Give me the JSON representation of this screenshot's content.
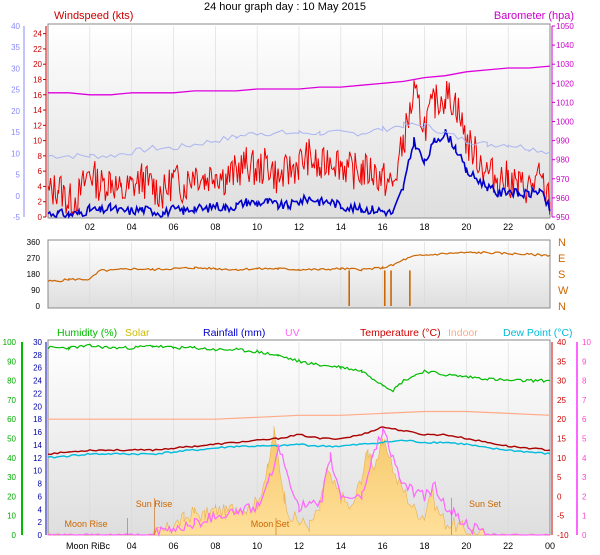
{
  "title": "24 hour graph day : 10 May 2015",
  "chart_data": [
    {
      "panel": "wind-barometer",
      "type": "line",
      "labels": {
        "left": "Windspeed (kts)",
        "right": "Barometer (hpa)"
      },
      "colors": {
        "left_label": "#cc0000",
        "right_label": "#cc00cc",
        "gust": "#ee0000",
        "speed": "#0000cc",
        "pressure": "#dd00dd",
        "pale": "#aab4f0"
      },
      "x_ticks": [
        "02",
        "04",
        "06",
        "08",
        "10",
        "12",
        "14",
        "16",
        "18",
        "20",
        "22",
        "00"
      ],
      "left_axis_kts": [
        "0",
        "2",
        "4",
        "6",
        "8",
        "10",
        "12",
        "14",
        "16",
        "18",
        "20",
        "22",
        "24"
      ],
      "left_axis_c": [
        "-5",
        "0",
        "5",
        "10",
        "15",
        "20",
        "25",
        "30",
        "35",
        "40"
      ],
      "right_axis": [
        "950",
        "960",
        "970",
        "980",
        "990",
        "1000",
        "1010",
        "1020",
        "1030",
        "1040",
        "1050"
      ],
      "ylim_kts": [
        0,
        25
      ],
      "ylim_hpa": [
        950,
        1050
      ],
      "series": [
        {
          "name": "Barometer",
          "key": "pressure",
          "x": [
            0,
            1,
            2,
            3,
            4,
            5,
            6,
            7,
            8,
            9,
            10,
            11,
            12,
            13,
            14,
            15,
            16,
            17,
            18,
            19,
            20,
            21,
            22,
            23,
            24
          ],
          "values": [
            1015,
            1015,
            1014,
            1014,
            1015,
            1015,
            1015,
            1016,
            1016,
            1016,
            1017,
            1017,
            1017,
            1018,
            1018,
            1019,
            1020,
            1021,
            1023,
            1024,
            1026,
            1027,
            1028,
            1028,
            1029
          ]
        },
        {
          "key": "gust",
          "x": [
            0,
            0.5,
            1,
            1.5,
            2,
            2.5,
            3,
            3.5,
            4,
            4.5,
            5,
            5.5,
            6,
            6.5,
            7,
            7.5,
            8,
            8.5,
            9,
            9.5,
            10,
            10.5,
            11,
            11.5,
            12,
            12.5,
            13,
            13.5,
            14,
            14.5,
            15,
            15.5,
            16,
            16.5,
            17,
            17.5,
            18,
            18.5,
            19,
            19.5,
            20,
            20.5,
            21,
            21.5,
            22,
            22.5,
            23,
            23.5,
            24
          ],
          "values": [
            3,
            4,
            2,
            3,
            6,
            4,
            5,
            3,
            4,
            5,
            4,
            3,
            5,
            4,
            6,
            5,
            6,
            5,
            6,
            7,
            6,
            7,
            5,
            6,
            7,
            8,
            6,
            8,
            7,
            6,
            6,
            6,
            5,
            4,
            10,
            16,
            12,
            15,
            16,
            15,
            10,
            8,
            6,
            5,
            5,
            4,
            4,
            5,
            2
          ]
        },
        {
          "key": "speed",
          "x": [
            0,
            0.5,
            1,
            1.5,
            2,
            2.5,
            3,
            3.5,
            4,
            4.5,
            5,
            5.5,
            6,
            6.5,
            7,
            7.5,
            8,
            8.5,
            9,
            9.5,
            10,
            10.5,
            11,
            11.5,
            12,
            12.5,
            13,
            13.5,
            14,
            14.5,
            15,
            15.5,
            16,
            16.5,
            17,
            17.5,
            18,
            18.5,
            19,
            19.5,
            20,
            20.5,
            21,
            21.5,
            22,
            22.5,
            23,
            23.5,
            24
          ],
          "values": [
            0.5,
            0.5,
            0.3,
            0.5,
            1,
            0.8,
            1.2,
            0.8,
            0.8,
            1,
            0.8,
            0.5,
            1,
            0.8,
            1.2,
            1,
            1.5,
            1.2,
            1.5,
            2,
            1.8,
            2,
            1.5,
            1.5,
            2,
            2.5,
            2,
            2,
            1.5,
            1.2,
            1,
            1,
            0.8,
            0.5,
            4,
            10,
            7,
            10,
            11,
            9,
            6,
            5,
            4,
            3,
            3.5,
            3,
            3,
            3.5,
            1
          ]
        },
        {
          "key": "pale",
          "x": [
            0,
            1,
            2,
            3,
            4,
            5,
            6,
            7,
            8,
            9,
            10,
            11,
            12,
            13,
            14,
            15,
            16,
            17,
            18,
            19,
            20,
            21,
            22,
            23,
            24
          ],
          "values": [
            8,
            8,
            8,
            8,
            8.5,
            9,
            9,
            9.5,
            10,
            10.5,
            11,
            11,
            11,
            11,
            11,
            11,
            11.5,
            12,
            12,
            11,
            10,
            9.5,
            9.5,
            9,
            8.5
          ]
        }
      ]
    },
    {
      "panel": "wind-direction",
      "type": "line",
      "left_axis": [
        "0",
        "90",
        "180",
        "270",
        "360"
      ],
      "right_axis": [
        "N",
        "W",
        "S",
        "E",
        "N"
      ],
      "ylim": [
        0,
        360
      ],
      "colors": {
        "line": "#cc6600",
        "right_letters": "#cc6600"
      },
      "series": [
        {
          "key": "direction",
          "x": [
            0,
            0.5,
            1,
            1.5,
            2,
            2.5,
            3,
            4,
            5,
            6,
            7,
            8,
            9,
            10,
            11,
            12,
            13,
            14,
            15,
            16,
            16.5,
            17,
            17.5,
            18,
            19,
            20,
            21,
            22,
            23,
            24
          ],
          "values": [
            140,
            140,
            150,
            150,
            150,
            200,
            200,
            210,
            205,
            210,
            215,
            210,
            205,
            210,
            210,
            205,
            205,
            210,
            205,
            215,
            230,
            260,
            280,
            285,
            295,
            300,
            300,
            295,
            290,
            285
          ]
        }
      ]
    },
    {
      "panel": "temp-humidity",
      "type": "area",
      "legend": [
        "Humidity (%)",
        "Solar",
        "Rainfall (mm)",
        "UV",
        "Temperature (°C)",
        "Indoor",
        "Dew Point (°C)"
      ],
      "legend_colors": [
        "#00bb00",
        "#ccbb00",
        "#0000cc",
        "#ff66ff",
        "#cc0000",
        "#ffaa88",
        "#00bbdd"
      ],
      "humidity_axis": [
        "0",
        "10",
        "20",
        "30",
        "40",
        "50",
        "60",
        "70",
        "80",
        "90",
        "100"
      ],
      "solar_axis": [
        "0",
        "2",
        "4",
        "6",
        "8",
        "10",
        "12",
        "14",
        "16",
        "18",
        "20",
        "22",
        "24",
        "26",
        "28",
        "30"
      ],
      "temp_axis": [
        "-10",
        "-5",
        "0",
        "5",
        "10",
        "15",
        "20",
        "25",
        "30",
        "35",
        "40"
      ],
      "uv_axis": [
        "0",
        "1",
        "2",
        "3",
        "4",
        "5",
        "6",
        "7",
        "8",
        "9",
        "10"
      ],
      "annotations": [
        "Moon Rise",
        "Sun Rise",
        "Moon Set",
        "Sun Set"
      ],
      "x_ticks": [
        "Moon RiBc",
        "04",
        "06",
        "08",
        "10",
        "12",
        "14",
        "16",
        "18",
        "20",
        "22",
        "00"
      ],
      "series": [
        {
          "key": "humidity",
          "x": [
            0,
            1,
            2,
            3,
            4,
            5,
            6,
            7,
            8,
            9,
            10,
            11,
            12,
            13,
            14,
            15,
            16,
            16.5,
            17,
            18,
            19,
            20,
            21,
            22,
            23,
            24
          ],
          "values": [
            97,
            97,
            98,
            97,
            97,
            98,
            97,
            97,
            96,
            96,
            95,
            93,
            90,
            88,
            87,
            85,
            78,
            75,
            80,
            85,
            83,
            82,
            81,
            80,
            80,
            80
          ]
        },
        {
          "key": "temperature",
          "x": [
            0,
            1,
            2,
            3,
            4,
            5,
            6,
            7,
            8,
            9,
            10,
            11,
            12,
            13,
            14,
            15,
            16,
            17,
            18,
            19,
            20,
            21,
            22,
            23,
            24
          ],
          "values": [
            11,
            11.5,
            12,
            12,
            12,
            12,
            12.5,
            13,
            13.5,
            14,
            14.5,
            15,
            16,
            15,
            15,
            16,
            18,
            17,
            16,
            16,
            15,
            14,
            13,
            12.5,
            12
          ]
        },
        {
          "key": "dewpoint",
          "x": [
            0,
            1,
            2,
            3,
            4,
            5,
            6,
            7,
            8,
            9,
            10,
            11,
            12,
            13,
            14,
            15,
            16,
            17,
            18,
            19,
            20,
            21,
            22,
            23,
            24
          ],
          "values": [
            10,
            10.5,
            11,
            11,
            11,
            11,
            11.5,
            12,
            12.5,
            13,
            13,
            13,
            13.5,
            13,
            13,
            13.5,
            14,
            14.5,
            14,
            14,
            13.5,
            12.5,
            12,
            11.5,
            11
          ]
        },
        {
          "key": "indoor",
          "x": [
            0,
            2,
            4,
            6,
            8,
            10,
            12,
            14,
            16,
            18,
            20,
            22,
            24
          ],
          "values": [
            20,
            20,
            20,
            20,
            20,
            20.5,
            21,
            21,
            21.5,
            22,
            22,
            21.5,
            21
          ]
        },
        {
          "key": "solar",
          "x": [
            0,
            4,
            5,
            5.5,
            6,
            6.5,
            7,
            7.5,
            8,
            8.5,
            9,
            9.5,
            10,
            10.5,
            10.8,
            11,
            11.3,
            11.6,
            12,
            12.5,
            13,
            13.3,
            13.6,
            14,
            14.5,
            15,
            15.3,
            15.6,
            16,
            16.3,
            16.6,
            17,
            17.5,
            18,
            18.3,
            18.6,
            19,
            19.5,
            20,
            20.5,
            21,
            24
          ],
          "values": [
            0,
            0,
            0,
            0.5,
            1.5,
            2.5,
            3.5,
            3,
            4,
            3.5,
            4.5,
            4,
            5,
            10,
            16,
            12,
            6,
            3,
            2,
            1.5,
            4,
            10,
            8,
            6,
            4,
            9,
            13,
            11,
            14,
            13,
            9,
            7,
            4,
            3,
            7,
            4,
            2,
            1.5,
            0.8,
            0.2,
            0,
            0
          ]
        },
        {
          "key": "uv",
          "x": [
            0,
            5,
            6,
            7,
            8,
            9,
            10,
            10.5,
            11,
            11.5,
            12,
            13,
            13.5,
            14,
            15,
            15.5,
            16,
            16.5,
            17,
            18,
            18.5,
            19,
            20,
            21,
            24
          ],
          "values": [
            0,
            0,
            0.3,
            0.6,
            1,
            1.2,
            1.5,
            2.5,
            4.5,
            3,
            1.5,
            1.5,
            4,
            2,
            2,
            4,
            5.5,
            4,
            2.5,
            2,
            2.5,
            1.5,
            0.5,
            0,
            0
          ]
        }
      ]
    }
  ]
}
